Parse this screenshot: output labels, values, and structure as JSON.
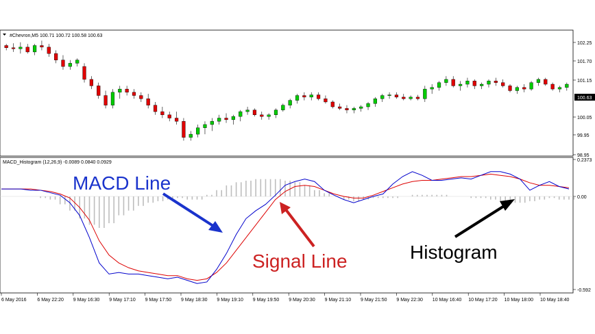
{
  "price_panel": {
    "header": "#Chevron,M5  100.71 100.72 100.58 100.63",
    "current_price": "100.63",
    "y_ticks": [
      "102.25",
      "101.70",
      "101.15",
      "100.63",
      "100.05",
      "99.95",
      "98.95"
    ]
  },
  "macd_panel": {
    "header": "MACD_Histogram (12,26,9) -0.0089 0.0840 0.0929",
    "y_ticks": [
      "0.2373",
      "0.00",
      "-0.592"
    ]
  },
  "x_ticks": [
    "6 May 2016",
    "6 May 22:20",
    "9 May 16:30",
    "9 May 17:10",
    "9 May 17:50",
    "9 May 18:30",
    "9 May 19:10",
    "9 May 19:50",
    "9 May 20:30",
    "9 May 21:10",
    "9 May 21:50",
    "9 May 22:30",
    "10 May 16:40",
    "10 May 17:20",
    "10 May 18:00",
    "10 May 18:40"
  ],
  "annotations": {
    "macd": "MACD Line",
    "signal": "Signal Line",
    "histogram": "Histogram"
  },
  "colors": {
    "bull": "#00cc00",
    "bear": "#e00000",
    "macd_line": "#0000cc",
    "signal_line": "#dd0000",
    "histogram": "#bdbdbd",
    "macd_anno": "#1a33cc",
    "signal_anno": "#cc2222",
    "hist_anno": "#000000"
  },
  "chart_data": [
    {
      "type": "candlestick",
      "title": "#Chevron,M5",
      "ylim": [
        98.95,
        102.6
      ],
      "candles": [
        [
          102.25,
          102.3,
          102.1,
          102.18
        ],
        [
          102.18,
          102.32,
          102.05,
          102.15
        ],
        [
          102.15,
          102.35,
          102.0,
          102.2
        ],
        [
          102.2,
          102.3,
          102.0,
          102.05
        ],
        [
          102.05,
          102.3,
          101.95,
          102.25
        ],
        [
          102.25,
          102.4,
          102.1,
          102.2
        ],
        [
          102.2,
          102.3,
          101.9,
          102.0
        ],
        [
          102.0,
          102.1,
          101.7,
          101.8
        ],
        [
          101.8,
          101.95,
          101.5,
          101.6
        ],
        [
          101.6,
          101.8,
          101.5,
          101.7
        ],
        [
          101.7,
          101.85,
          101.6,
          101.8
        ],
        [
          101.6,
          101.7,
          101.1,
          101.2
        ],
        [
          101.2,
          101.3,
          100.9,
          101.0
        ],
        [
          101.0,
          101.1,
          100.6,
          100.7
        ],
        [
          100.7,
          100.85,
          100.3,
          100.4
        ],
        [
          100.4,
          100.9,
          100.3,
          100.8
        ],
        [
          100.8,
          101.0,
          100.6,
          100.9
        ],
        [
          100.9,
          101.0,
          100.7,
          100.8
        ],
        [
          100.8,
          100.9,
          100.6,
          100.7
        ],
        [
          100.7,
          100.8,
          100.5,
          100.6
        ],
        [
          100.6,
          100.75,
          100.3,
          100.4
        ],
        [
          100.4,
          100.5,
          100.1,
          100.2
        ],
        [
          100.2,
          100.35,
          100.0,
          100.1
        ],
        [
          100.1,
          100.2,
          99.9,
          100.0
        ],
        [
          100.0,
          100.2,
          99.8,
          99.9
        ],
        [
          99.9,
          100.0,
          99.3,
          99.4
        ],
        [
          99.4,
          99.6,
          99.3,
          99.5
        ],
        [
          99.5,
          99.8,
          99.4,
          99.7
        ],
        [
          99.7,
          99.9,
          99.5,
          99.8
        ],
        [
          99.8,
          100.0,
          99.6,
          99.9
        ],
        [
          99.9,
          100.1,
          99.8,
          100.0
        ],
        [
          100.0,
          100.15,
          99.85,
          99.95
        ],
        [
          99.95,
          100.1,
          99.8,
          100.05
        ],
        [
          100.05,
          100.25,
          99.9,
          100.2
        ],
        [
          100.2,
          100.35,
          100.1,
          100.25
        ],
        [
          100.25,
          100.3,
          100.05,
          100.1
        ],
        [
          100.1,
          100.2,
          99.95,
          100.05
        ],
        [
          100.05,
          100.15,
          99.95,
          100.1
        ],
        [
          100.1,
          100.3,
          100.0,
          100.25
        ],
        [
          100.25,
          100.45,
          100.2,
          100.4
        ],
        [
          100.4,
          100.6,
          100.3,
          100.55
        ],
        [
          100.55,
          100.75,
          100.45,
          100.7
        ],
        [
          100.7,
          100.8,
          100.55,
          100.65
        ],
        [
          100.65,
          100.8,
          100.55,
          100.72
        ],
        [
          100.72,
          100.8,
          100.55,
          100.6
        ],
        [
          100.6,
          100.7,
          100.45,
          100.5
        ],
        [
          100.5,
          100.55,
          100.3,
          100.35
        ],
        [
          100.35,
          100.45,
          100.25,
          100.3
        ],
        [
          100.3,
          100.4,
          100.15,
          100.25
        ],
        [
          100.25,
          100.35,
          100.15,
          100.3
        ],
        [
          100.3,
          100.4,
          100.2,
          100.35
        ],
        [
          100.35,
          100.5,
          100.25,
          100.45
        ],
        [
          100.45,
          100.65,
          100.35,
          100.6
        ],
        [
          100.6,
          100.75,
          100.5,
          100.7
        ],
        [
          100.7,
          100.8,
          100.6,
          100.72
        ],
        [
          100.72,
          100.8,
          100.6,
          100.65
        ],
        [
          100.65,
          100.75,
          100.55,
          100.6
        ],
        [
          100.6,
          100.7,
          100.55,
          100.65
        ],
        [
          100.65,
          100.72,
          100.55,
          100.6
        ],
        [
          100.6,
          101.0,
          100.5,
          100.9
        ],
        [
          100.9,
          101.05,
          100.75,
          100.95
        ],
        [
          100.95,
          101.15,
          100.85,
          101.1
        ],
        [
          101.1,
          101.3,
          101.0,
          101.2
        ],
        [
          101.2,
          101.3,
          100.95,
          101.0
        ],
        [
          101.0,
          101.15,
          100.85,
          101.05
        ],
        [
          101.05,
          101.25,
          100.95,
          101.15
        ],
        [
          101.15,
          101.2,
          100.9,
          101.0
        ],
        [
          101.0,
          101.1,
          100.9,
          101.05
        ],
        [
          101.05,
          101.2,
          100.95,
          101.15
        ],
        [
          101.15,
          101.25,
          101.0,
          101.1
        ],
        [
          101.1,
          101.2,
          100.95,
          101.0
        ],
        [
          101.0,
          101.05,
          100.8,
          100.85
        ],
        [
          100.85,
          101.0,
          100.75,
          100.95
        ],
        [
          100.95,
          101.05,
          100.8,
          100.9
        ],
        [
          100.9,
          101.15,
          100.85,
          101.1
        ],
        [
          101.1,
          101.25,
          101.0,
          101.2
        ],
        [
          101.2,
          101.25,
          101.0,
          101.05
        ],
        [
          101.05,
          101.1,
          100.85,
          100.9
        ],
        [
          100.9,
          101.0,
          100.8,
          100.95
        ],
        [
          100.95,
          101.1,
          100.85,
          101.05
        ]
      ]
    },
    {
      "type": "line",
      "title": "MACD_Histogram (12,26,9)",
      "ylim": [
        -0.592,
        0.2373
      ],
      "series": [
        {
          "name": "MACD Line",
          "values": [
            0.06,
            0.06,
            0.06,
            0.05,
            0.05,
            0.03,
            0.01,
            -0.04,
            -0.12,
            -0.26,
            -0.42,
            -0.49,
            -0.48,
            -0.49,
            -0.49,
            -0.5,
            -0.51,
            -0.52,
            -0.51,
            -0.53,
            -0.55,
            -0.54,
            -0.46,
            -0.36,
            -0.24,
            -0.14,
            -0.09,
            -0.05,
            0.01,
            0.09,
            0.12,
            0.14,
            0.12,
            0.05,
            0.01,
            -0.02,
            -0.04,
            -0.02,
            0.0,
            0.02,
            0.1,
            0.16,
            0.2,
            0.17,
            0.13,
            0.13,
            0.14,
            0.15,
            0.14,
            0.17,
            0.2,
            0.2,
            0.18,
            0.14,
            0.05,
            0.09,
            0.12,
            0.08,
            0.06
          ]
        },
        {
          "name": "Signal Line",
          "values": [
            0.06,
            0.06,
            0.06,
            0.06,
            0.05,
            0.04,
            0.02,
            -0.01,
            -0.07,
            -0.15,
            -0.28,
            -0.37,
            -0.42,
            -0.45,
            -0.47,
            -0.48,
            -0.49,
            -0.5,
            -0.5,
            -0.52,
            -0.53,
            -0.52,
            -0.48,
            -0.42,
            -0.34,
            -0.26,
            -0.18,
            -0.1,
            -0.02,
            0.04,
            0.08,
            0.09,
            0.08,
            0.05,
            0.02,
            0.0,
            -0.01,
            -0.01,
            0.01,
            0.04,
            0.07,
            0.1,
            0.12,
            0.13,
            0.13,
            0.14,
            0.15,
            0.16,
            0.16,
            0.17,
            0.18,
            0.17,
            0.16,
            0.14,
            0.11,
            0.09,
            0.09,
            0.08,
            0.07
          ]
        },
        {
          "name": "Histogram",
          "values": [
            0,
            0,
            0,
            0,
            -0.01,
            -0.02,
            -0.05,
            -0.09,
            -0.14,
            -0.18,
            -0.2,
            -0.17,
            -0.12,
            -0.09,
            -0.06,
            -0.04,
            -0.03,
            -0.02,
            -0.01,
            -0.02,
            -0.02,
            0.01,
            0.04,
            0.07,
            0.09,
            0.1,
            0.11,
            0.11,
            0.11,
            0.1,
            0.09,
            0.07,
            0.04,
            0.02,
            0,
            -0.02,
            -0.03,
            -0.02,
            -0.01,
            -0.01,
            -0.01,
            0,
            0.01,
            0.01,
            0.01,
            0.01,
            0,
            0,
            -0.01,
            -0.01,
            -0.02,
            -0.03,
            -0.04,
            -0.04,
            -0.03,
            -0.02,
            -0.01,
            -0.02,
            -0.02
          ]
        }
      ]
    }
  ]
}
